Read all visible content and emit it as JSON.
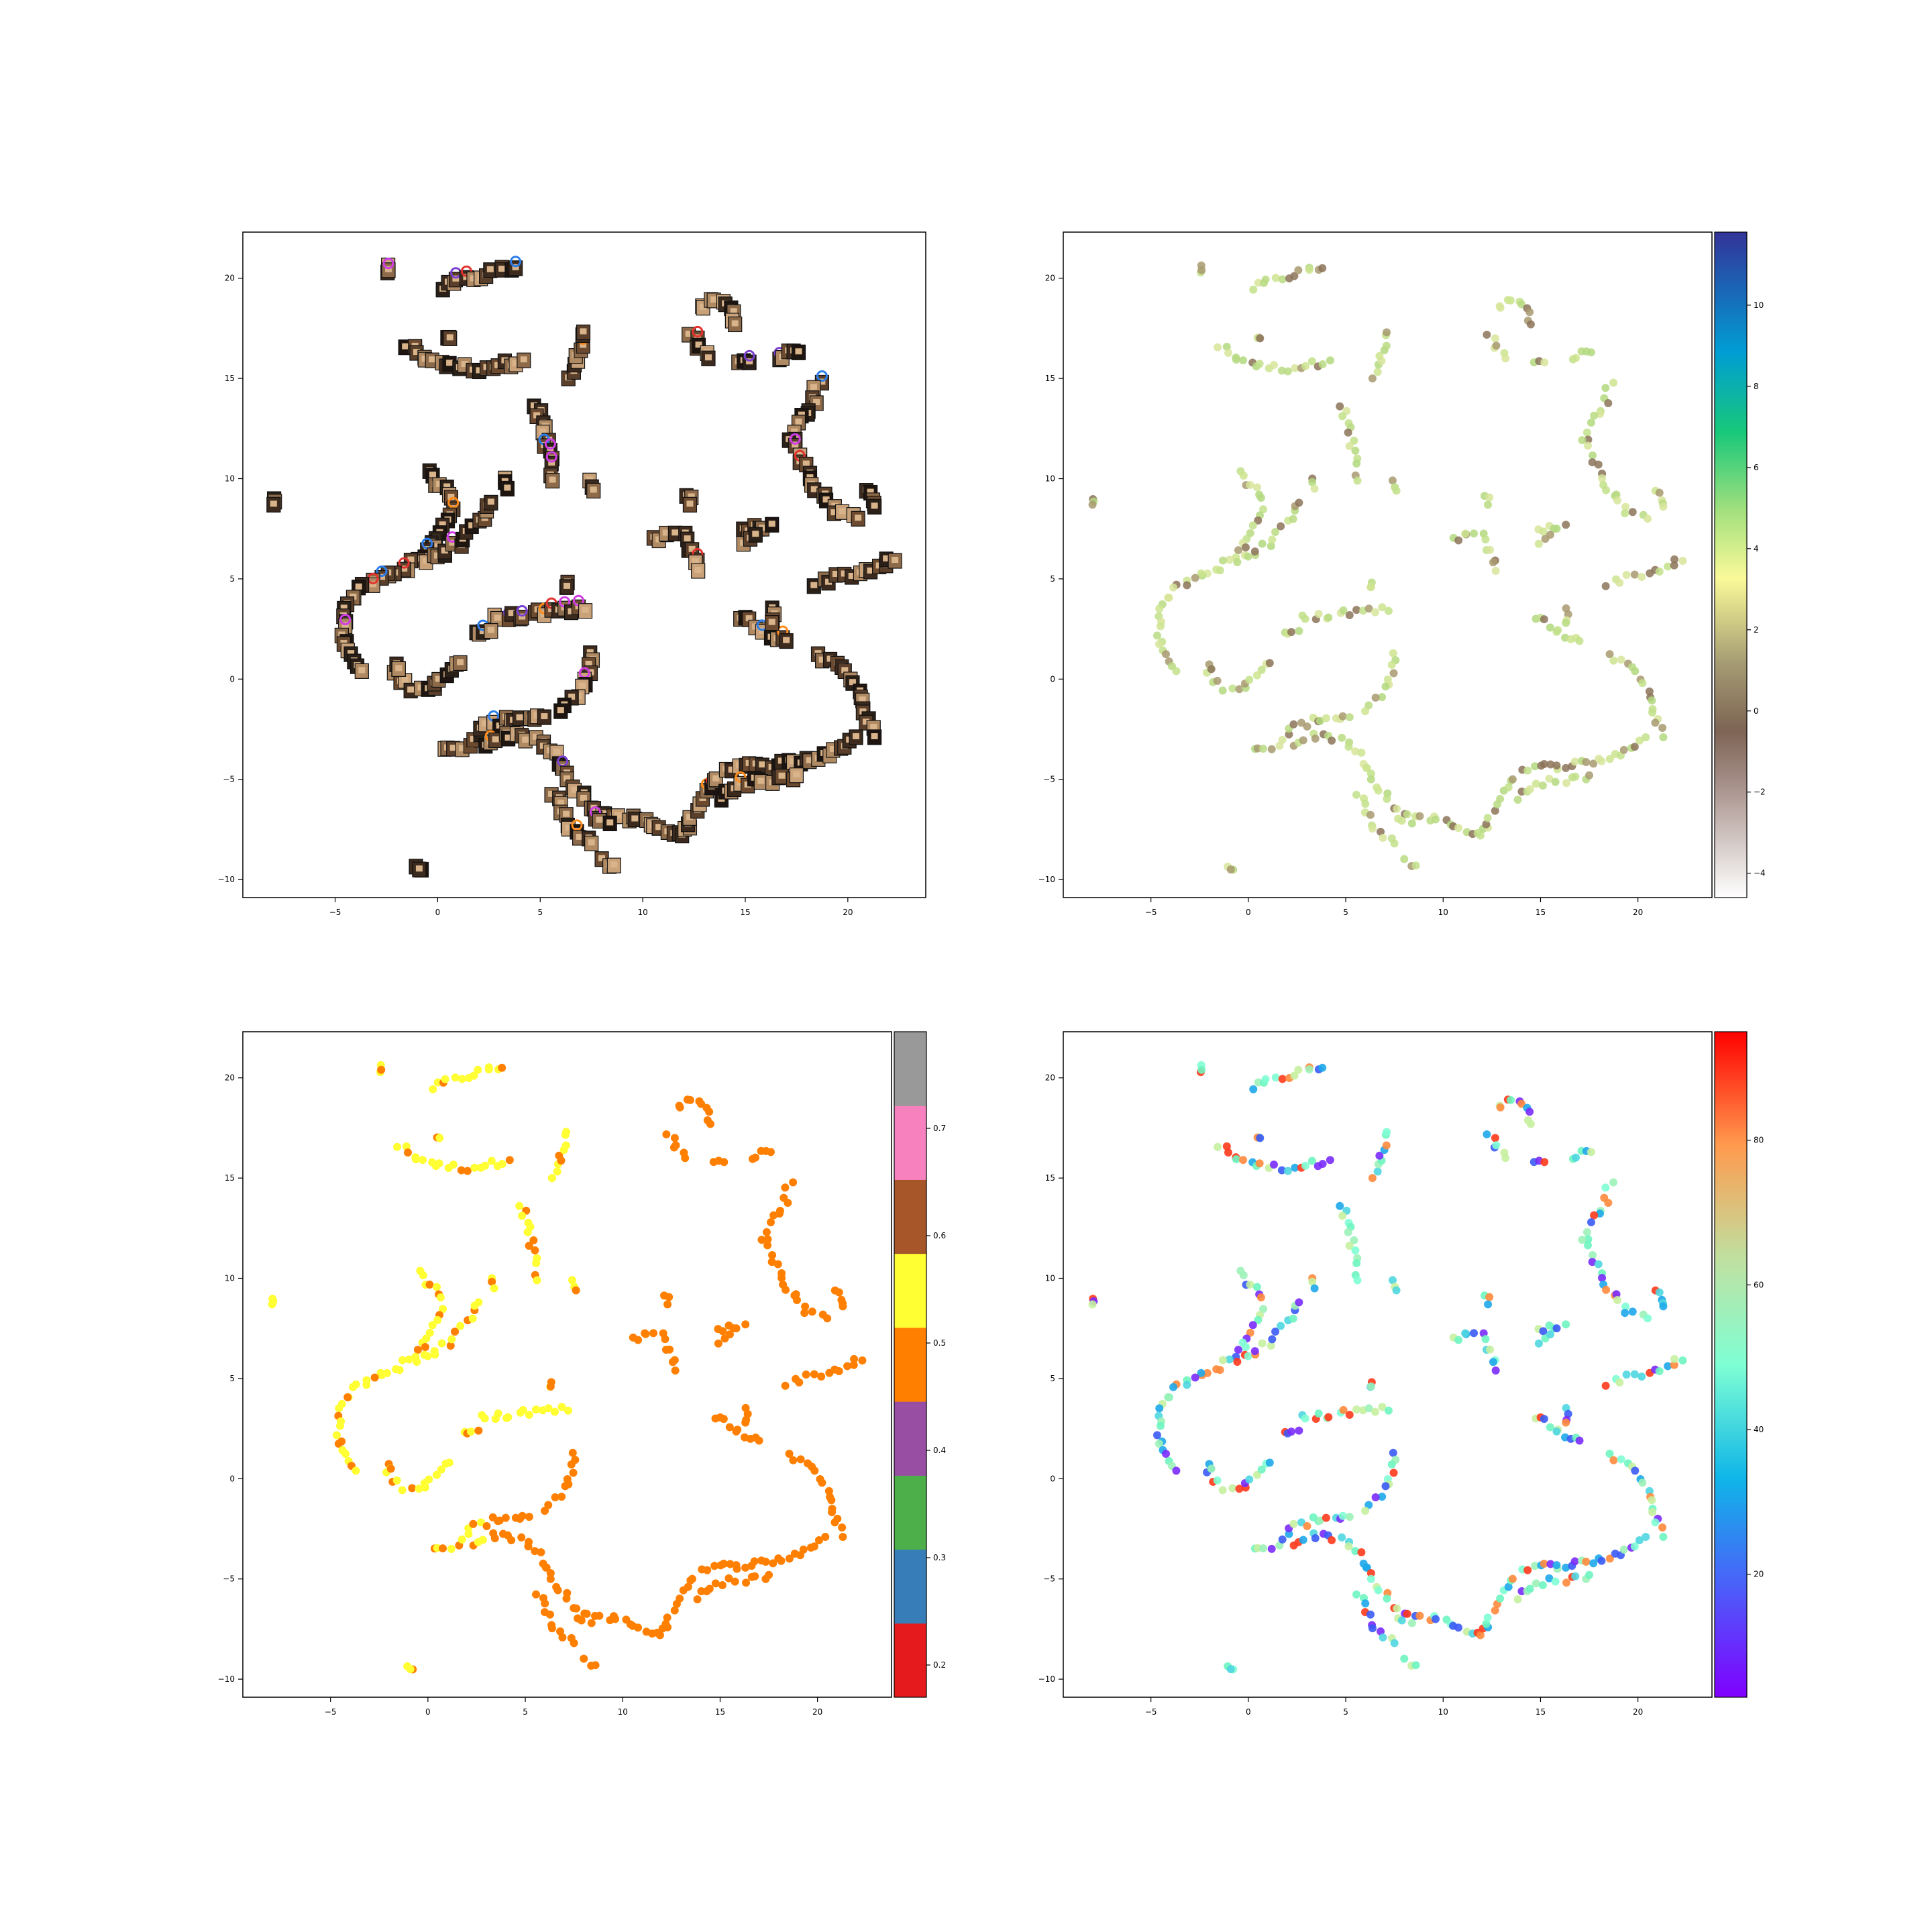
{
  "chart_data": [
    {
      "type": "scatter",
      "marker_style": "thumbnail-images",
      "xticks": [
        "−5",
        "0",
        "5",
        "10",
        "15",
        "20"
      ],
      "yticks": [
        "−10",
        "−5",
        "0",
        "5",
        "10",
        "15",
        "20"
      ],
      "xlim": [
        -9.5,
        23.8
      ],
      "ylim": [
        -10.9,
        22.3
      ],
      "colorbar": null,
      "grid": false
    },
    {
      "type": "scatter",
      "xticks": [
        "−5",
        "0",
        "5",
        "10",
        "15",
        "20"
      ],
      "yticks": [
        "−10",
        "−5",
        "0",
        "5",
        "10",
        "15",
        "20"
      ],
      "xlim": [
        -9.5,
        23.8
      ],
      "ylim": [
        -10.9,
        22.3
      ],
      "colorbar": {
        "colormap": "terrain_r",
        "range": [
          -4.6,
          11.8
        ],
        "ticks": [
          -4,
          -2,
          0,
          2,
          4,
          6,
          8,
          10
        ],
        "tick_labels": [
          "−4",
          "−2",
          "0",
          "2",
          "4",
          "6",
          "8",
          "10"
        ]
      },
      "point_color_value_typical": 3.7,
      "grid": false
    },
    {
      "type": "scatter",
      "xticks": [
        "−5",
        "0",
        "5",
        "10",
        "15",
        "20"
      ],
      "yticks": [
        "−10",
        "−5",
        "0",
        "5",
        "10",
        "15",
        "20"
      ],
      "xlim": [
        -9.5,
        23.8
      ],
      "ylim": [
        -10.9,
        22.3
      ],
      "colorbar": {
        "colormap": "Set1",
        "range": [
          0.17,
          0.79
        ],
        "ticks": [
          0.2,
          0.3,
          0.4,
          0.5,
          0.6,
          0.7
        ],
        "tick_labels": [
          "0.2",
          "0.3",
          "0.4",
          "0.5",
          "0.6",
          "0.7"
        ],
        "band_colors": [
          "#e41a1c",
          "#377eb8",
          "#4daf4a",
          "#984ea3",
          "#ff7f00",
          "#ffff33",
          "#a65628",
          "#f781bf",
          "#999999"
        ]
      },
      "grid": false
    },
    {
      "type": "scatter",
      "xticks": [
        "−5",
        "0",
        "5",
        "10",
        "15",
        "20"
      ],
      "yticks": [
        "−10",
        "−5",
        "0",
        "5",
        "10",
        "15",
        "20"
      ],
      "xlim": [
        -9.5,
        23.8
      ],
      "ylim": [
        -10.9,
        22.3
      ],
      "colorbar": {
        "colormap": "rainbow",
        "range": [
          3,
          95
        ],
        "ticks": [
          20,
          40,
          60,
          80
        ],
        "tick_labels": [
          "20",
          "40",
          "60",
          "80"
        ]
      },
      "grid": false
    }
  ],
  "clusters": [
    {
      "pts": [
        [
          0.2,
          19.5
        ],
        [
          1,
          19.8
        ],
        [
          2,
          20.1
        ],
        [
          3,
          20.4
        ],
        [
          3.8,
          20.5
        ]
      ]
    },
    {
      "pts": [
        [
          -1.5,
          16.6
        ],
        [
          -0.5,
          16
        ],
        [
          0.6,
          15.6
        ],
        [
          2,
          15.5
        ],
        [
          3.3,
          15.7
        ],
        [
          4.2,
          15.9
        ]
      ]
    },
    {
      "pts": [
        [
          0.5,
          17.2
        ],
        [
          0.6,
          17
        ]
      ]
    },
    {
      "pts": [
        [
          6.4,
          15.1
        ],
        [
          6.8,
          15.8
        ],
        [
          7,
          16.4
        ],
        [
          7.1,
          17.3
        ]
      ]
    },
    {
      "pts": [
        [
          4.8,
          13.6
        ],
        [
          5.1,
          12.8
        ],
        [
          5.3,
          11.6
        ],
        [
          5.7,
          10.6
        ],
        [
          5.6,
          9.9
        ]
      ]
    },
    {
      "pts": [
        [
          3.3,
          9.9
        ],
        [
          3.4,
          9.5
        ]
      ]
    },
    {
      "pts": [
        [
          7.5,
          9.8
        ],
        [
          7.6,
          9.4
        ]
      ]
    },
    {
      "pts": [
        [
          12.3,
          9.2
        ],
        [
          12.3,
          8.7
        ]
      ]
    },
    {
      "pts": [
        [
          -0.5,
          10.2
        ],
        [
          0.4,
          9.5
        ],
        [
          0.7,
          8.6
        ],
        [
          0.3,
          7.6
        ],
        [
          -0.3,
          6.5
        ],
        [
          -1.4,
          5.6
        ],
        [
          -2.8,
          5.1
        ],
        [
          -3.8,
          4.4
        ],
        [
          -4.5,
          3.4
        ],
        [
          -4.6,
          2.3
        ],
        [
          -4.3,
          1.2
        ],
        [
          -3.7,
          0.4
        ]
      ]
    },
    {
      "pts": [
        [
          -0.6,
          5.9
        ],
        [
          0.5,
          6.4
        ],
        [
          1.5,
          7.2
        ],
        [
          2.2,
          8
        ],
        [
          2.6,
          8.8
        ]
      ]
    },
    {
      "pts": [
        [
          10.5,
          7
        ],
        [
          11.3,
          7.2
        ],
        [
          12,
          7.1
        ],
        [
          12.5,
          6.3
        ],
        [
          12.7,
          5.4
        ]
      ]
    },
    {
      "pts": [
        [
          14.8,
          7.4
        ],
        [
          15.6,
          7.6
        ],
        [
          16.3,
          7.7
        ]
      ]
    },
    {
      "pts": [
        [
          15,
          6.8
        ],
        [
          15.5,
          7.2
        ]
      ]
    },
    {
      "pts": [
        [
          18.5,
          4.7
        ],
        [
          19.5,
          5.1
        ],
        [
          20.5,
          5.3
        ],
        [
          21.5,
          5.6
        ],
        [
          22.3,
          5.9
        ]
      ]
    },
    {
      "pts": [
        [
          12.8,
          18.5
        ],
        [
          13.5,
          18.9
        ],
        [
          14.3,
          18.5
        ],
        [
          14.5,
          17.7
        ]
      ]
    },
    {
      "pts": [
        [
          12.4,
          17.3
        ],
        [
          12.7,
          16.7
        ],
        [
          13.2,
          16
        ]
      ]
    },
    {
      "pts": [
        [
          14.5,
          15.7
        ],
        [
          15.2,
          15.8
        ]
      ]
    },
    {
      "pts": [
        [
          16.5,
          15.9
        ],
        [
          17,
          16.4
        ],
        [
          17.6,
          16.3
        ]
      ]
    },
    {
      "pts": [
        [
          18.6,
          14.8
        ],
        [
          18.3,
          13.8
        ],
        [
          17.5,
          12.7
        ],
        [
          17.3,
          11.8
        ],
        [
          18.1,
          10.4
        ],
        [
          18.5,
          9.5
        ],
        [
          19.5,
          8.4
        ],
        [
          20.5,
          8
        ]
      ]
    },
    {
      "pts": [
        [
          21,
          9.4
        ],
        [
          21.4,
          9
        ],
        [
          21.3,
          8.6
        ]
      ]
    },
    {
      "pts": [
        [
          2.8,
          3.2
        ],
        [
          3.6,
          3.1
        ],
        [
          4.6,
          3.2
        ],
        [
          5.6,
          3.4
        ],
        [
          6.5,
          3.5
        ],
        [
          7.2,
          3.4
        ]
      ]
    },
    {
      "pts": [
        [
          1.8,
          2.2
        ],
        [
          2.6,
          2.4
        ]
      ]
    },
    {
      "pts": [
        [
          7.5,
          1.3
        ],
        [
          7.4,
          0.6
        ],
        [
          7.1,
          -0.3
        ],
        [
          6.5,
          -1
        ],
        [
          6,
          -1.6
        ]
      ]
    },
    {
      "pts": [
        [
          -2,
          0.2
        ],
        [
          -1.2,
          -0.4
        ],
        [
          -0.3,
          -0.4
        ],
        [
          0.6,
          0.4
        ],
        [
          1.1,
          0.8
        ]
      ]
    },
    {
      "pts": [
        [
          -2.1,
          0.8
        ],
        [
          -1.9,
          0.5
        ]
      ]
    },
    {
      "pts": [
        [
          6.3,
          4.9
        ],
        [
          6.3,
          4.6
        ]
      ]
    },
    {
      "pts": [
        [
          14.6,
          3
        ],
        [
          15.2,
          2.9
        ],
        [
          16,
          2.4
        ],
        [
          16.6,
          2
        ],
        [
          17,
          1.9
        ]
      ]
    },
    {
      "pts": [
        [
          16.3,
          3.7
        ],
        [
          16.3,
          2.8
        ]
      ]
    },
    {
      "pts": [
        [
          18.6,
          1.3
        ],
        [
          19.2,
          0.8
        ],
        [
          20,
          0.3
        ],
        [
          20.3,
          -0.3
        ],
        [
          20.6,
          -0.8
        ],
        [
          20.8,
          -1.6
        ],
        [
          21,
          -2.2
        ],
        [
          21.3,
          -2.9
        ]
      ]
    },
    {
      "pts": [
        [
          0.3,
          -3.6
        ],
        [
          1.2,
          -3.5
        ]
      ]
    },
    {
      "pts": [
        [
          1.5,
          -3.2
        ],
        [
          2.4,
          -2.4
        ],
        [
          3.2,
          -2.1
        ],
        [
          4.1,
          -1.9
        ],
        [
          5.2,
          -1.9
        ]
      ]
    },
    {
      "pts": [
        [
          2.3,
          -3.3
        ],
        [
          3.2,
          -2.8
        ],
        [
          4.1,
          -2.9
        ],
        [
          4.8,
          -3.1
        ],
        [
          5.5,
          -3.6
        ],
        [
          5.9,
          -4.3
        ],
        [
          6.3,
          -5
        ]
      ]
    },
    {
      "pts": [
        [
          5.6,
          -5.7
        ],
        [
          6.1,
          -6.6
        ],
        [
          6.4,
          -7.6
        ],
        [
          6.9,
          -7.8
        ],
        [
          7.5,
          -8.2
        ]
      ]
    },
    {
      "pts": [
        [
          6.6,
          -5.4
        ],
        [
          7.4,
          -6.3
        ],
        [
          8,
          -6.7
        ],
        [
          9.2,
          -6.9
        ],
        [
          10.3,
          -7.2
        ],
        [
          11.1,
          -7.5
        ],
        [
          11.9,
          -7.9
        ],
        [
          12.3,
          -7.1
        ],
        [
          12.7,
          -6.2
        ],
        [
          13.2,
          -5.3
        ],
        [
          13.9,
          -4.6
        ],
        [
          14.9,
          -4.4
        ],
        [
          16,
          -4.3
        ],
        [
          17.2,
          -4.2
        ],
        [
          18.3,
          -4
        ],
        [
          19.1,
          -3.7
        ],
        [
          19.9,
          -3.3
        ],
        [
          20.4,
          -2.9
        ]
      ]
    },
    {
      "pts": [
        [
          13.7,
          -5.9
        ],
        [
          14.6,
          -5.5
        ],
        [
          15.6,
          -5.1
        ],
        [
          16.6,
          -5
        ],
        [
          17.5,
          -4.8
        ]
      ]
    },
    {
      "pts": [
        [
          7.7,
          -7
        ],
        [
          8.4,
          -7.2
        ]
      ]
    },
    {
      "pts": [
        [
          8,
          -9.1
        ],
        [
          8.6,
          -9.3
        ]
      ]
    },
    {
      "pts": [
        [
          -0.9,
          -9.3
        ],
        [
          -0.9,
          -9.5
        ]
      ]
    },
    {
      "pts": [
        [
          -8,
          8.9
        ],
        [
          -8,
          8.7
        ]
      ]
    },
    {
      "pts": [
        [
          -2.5,
          20.5
        ],
        [
          -2.4,
          20.4
        ]
      ]
    }
  ]
}
